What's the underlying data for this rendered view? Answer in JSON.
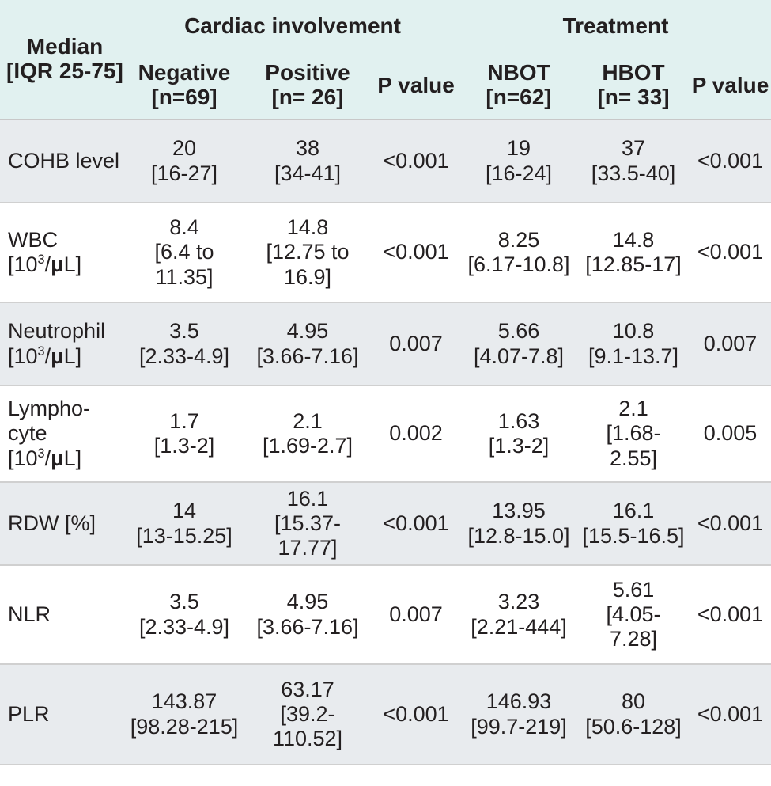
{
  "header": {
    "stub_line1": "Median",
    "stub_line2": "[IQR 25-75]",
    "group_cardiac": "Cardiac involvement",
    "group_treatment": "Treatment",
    "columns": [
      {
        "line1": "Negative",
        "line2": "[n=69]"
      },
      {
        "line1": "Positive",
        "line2": "[n= 26]"
      },
      {
        "line1": "P value",
        "line2": ""
      },
      {
        "line1": "NBOT",
        "line2": "[n=62]"
      },
      {
        "line1": "HBOT",
        "line2": "[n= 33]"
      },
      {
        "line1": "P value",
        "line2": ""
      }
    ]
  },
  "unit": {
    "prefix": "[10",
    "exp": "3",
    "slash": "/",
    "mu": "μ",
    "suffix": "L]"
  },
  "rows": [
    {
      "label": "COHB level",
      "cells": [
        "20\n[16-27]",
        "38\n[34-41]",
        "<0.001",
        "19\n[16-24]",
        "37\n[33.5-40]",
        "<0.001"
      ]
    },
    {
      "label": "WBC",
      "cells": [
        "8.4\n[6.4 to\n11.35]",
        "14.8\n[12.75 to\n16.9]",
        "<0.001",
        "8.25\n[6.17-10.8]",
        "14.8\n[12.85-17]",
        "<0.001"
      ]
    },
    {
      "label": "Neutrophil",
      "cells": [
        "3.5\n[2.33-4.9]",
        "4.95\n[3.66-7.16]",
        "0.007",
        "5.66\n[4.07-7.8]",
        "10.8\n[9.1-13.7]",
        "0.007"
      ]
    },
    {
      "label": "Lympho-\ncyte",
      "cells": [
        "1.7\n[1.3-2]",
        "2.1\n[1.69-2.7]",
        "0.002",
        "1.63\n[1.3-2]",
        "2.1\n[1.68-\n2.55]",
        "0.005"
      ]
    },
    {
      "label": "RDW [%]",
      "cells": [
        "14\n[13-15.25]",
        "16.1\n[15.37-17.77]",
        "<0.001",
        "13.95\n[12.8-15.0]",
        "16.1\n[15.5-16.5]",
        "<0.001"
      ]
    },
    {
      "label": "NLR",
      "cells": [
        "3.5\n[2.33-4.9]",
        "4.95\n[3.66-7.16]",
        "0.007",
        "3.23\n[2.21-444]",
        "5.61\n[4.05-\n7.28]",
        "<0.001"
      ]
    },
    {
      "label": "PLR",
      "cells": [
        "143.87\n[98.28-215]",
        "63.17\n[39.2-\n110.52]",
        "<0.001",
        "146.93\n[99.7-219]",
        "80\n[50.6-128]",
        "<0.001"
      ]
    }
  ]
}
